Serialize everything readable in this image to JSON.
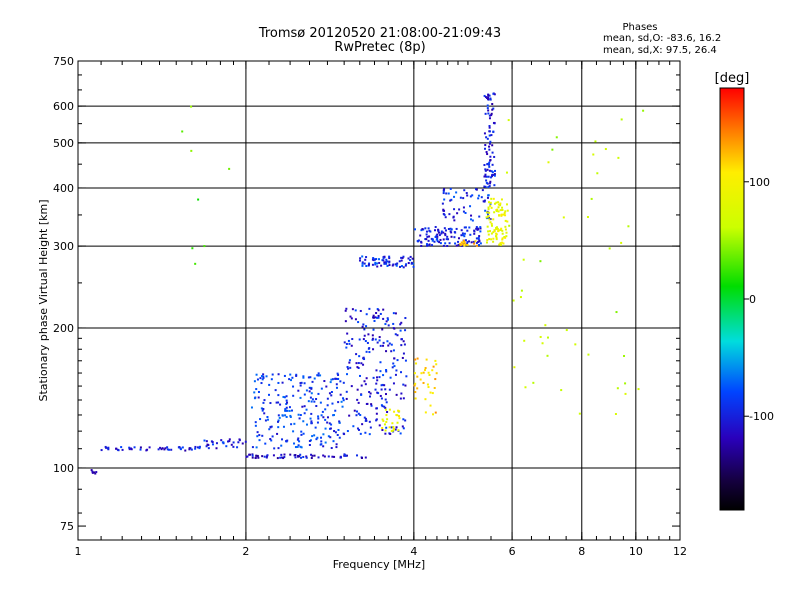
{
  "header": {
    "title_line1": "Tromsø 20120520 21:08:00-21:09:43",
    "title_line2": "RwPretec (8p)"
  },
  "stats": {
    "heading": "Phases",
    "line1": "mean, sd,O: -83.6, 16.2",
    "line2": "mean, sd,X:  97.5, 26.4"
  },
  "chart_data": {
    "type": "scatter",
    "xlabel": "Frequency [MHz]",
    "ylabel": "Stationary phase Virtual Height [km]",
    "x_scale": "log",
    "y_scale": "log",
    "xlim": [
      1,
      12
    ],
    "ylim": [
      70,
      750
    ],
    "x_ticks": [
      1,
      2,
      4,
      6,
      8,
      10,
      12
    ],
    "y_ticks": [
      75,
      100,
      200,
      300,
      400,
      500,
      600,
      750
    ],
    "x_gridlines": [
      2,
      4,
      6,
      8,
      10
    ],
    "y_gridlines": [
      100,
      200,
      300,
      400,
      500,
      600
    ],
    "grid": true,
    "colorbar": {
      "label": "[deg]",
      "range": [
        -180,
        180
      ],
      "ticks": [
        100,
        0,
        -100
      ],
      "colormap": "rainbow",
      "position": "right"
    },
    "traces": [
      {
        "name": "",
        "x_range": [
          1.05,
          1.08
        ],
        "y_range": [
          97,
          99
        ],
        "phase": -110,
        "density": 6
      },
      {
        "name": "",
        "x_range": [
          1.08,
          1.65
        ],
        "y_range": [
          109,
          111
        ],
        "phase": -100,
        "density": 45
      },
      {
        "name": "",
        "x_range": [
          1.65,
          2.0
        ],
        "y_range": [
          110,
          116
        ],
        "phase": -95,
        "density": 30
      },
      {
        "name": "",
        "x_range": [
          2.0,
          3.3
        ],
        "y_range": [
          105,
          107
        ],
        "phase": -105,
        "density": 60
      },
      {
        "name": "",
        "x_range": [
          2.05,
          3.0
        ],
        "y_range": [
          110,
          160
        ],
        "phase": -85,
        "density": 240
      },
      {
        "name": "",
        "x_range": [
          3.0,
          3.9
        ],
        "y_range": [
          118,
          220
        ],
        "phase": -95,
        "density": 220
      },
      {
        "name": "",
        "x_range": [
          3.2,
          4.0
        ],
        "y_range": [
          270,
          285
        ],
        "phase": -90,
        "density": 70
      },
      {
        "name": "",
        "x_range": [
          4.0,
          5.3
        ],
        "y_range": [
          300,
          330
        ],
        "phase": -95,
        "density": 120
      },
      {
        "name": "",
        "x_range": [
          4.5,
          5.5
        ],
        "y_range": [
          340,
          400
        ],
        "phase": -90,
        "density": 60
      },
      {
        "name": "",
        "x_range": [
          5.35,
          5.6
        ],
        "y_range": [
          400,
          640
        ],
        "phase": -100,
        "density": 90
      },
      {
        "name": "",
        "x_range": [
          5.4,
          5.9
        ],
        "y_range": [
          300,
          380
        ],
        "phase": 90,
        "density": 90
      },
      {
        "name": "",
        "x_range": [
          3.5,
          3.8
        ],
        "y_range": [
          120,
          135
        ],
        "phase": 95,
        "density": 25
      },
      {
        "name": "",
        "x_range": [
          4.0,
          4.4
        ],
        "y_range": [
          130,
          175
        ],
        "phase": 120,
        "density": 35
      },
      {
        "name": "",
        "x_range": [
          4.8,
          5.2
        ],
        "y_range": [
          300,
          310
        ],
        "phase": 130,
        "density": 15
      },
      {
        "name": "",
        "x_range": [
          5.8,
          10.5
        ],
        "y_range": [
          120,
          600
        ],
        "phase": 60,
        "density": 45
      },
      {
        "name": "",
        "x_range": [
          1.5,
          2.0
        ],
        "y_range": [
          160,
          640
        ],
        "phase": 30,
        "density": 8
      }
    ]
  }
}
